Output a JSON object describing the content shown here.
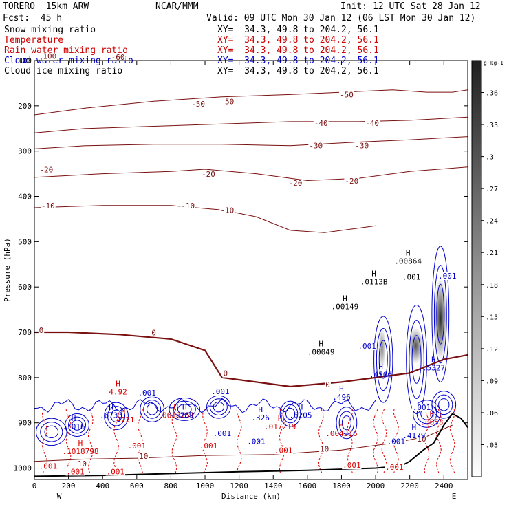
{
  "header": {
    "model": "TORERO  15km ARW",
    "org": "NCAR/MMM",
    "init": "Init: 12 UTC Sat 28 Jan 12",
    "fcst": "Fcst:  45 h",
    "valid": "Valid: 09 UTC Mon 30 Jan 12 (06 LST Mon 30 Jan 12)"
  },
  "fields": [
    {
      "label": "Snow mixing ratio",
      "xy": "XY=  34.3, 49.8 to 204.2, 56.1",
      "color": "#000000",
      "xy_color": "#000000"
    },
    {
      "label": "Temperature",
      "xy": "XY=  34.3, 49.8 to 204.2, 56.1",
      "color": "#cc0000",
      "xy_color": "#cc0000"
    },
    {
      "label": "Rain water mixing ratio",
      "xy": "XY=  34.3, 49.8 to 204.2, 56.1",
      "color": "#cc0000",
      "xy_color": "#cc0000"
    },
    {
      "label": "Cloud water mixing ratio",
      "xy": "XY=  34.3, 49.8 to 204.2, 56.1",
      "color": "#0000cc",
      "xy_color": "#0000cc"
    },
    {
      "label": "Cloud ice mixing ratio",
      "xy": "XY=  34.3, 49.8 to 204.2, 56.1",
      "color": "#000000",
      "xy_color": "#000000"
    }
  ],
  "colors": {
    "temperature": "#7a1010",
    "rain": "#dd0000",
    "cloud_water": "#0000cc",
    "terrain": "#000000",
    "snow_shade": "#222222"
  },
  "chart_data": {
    "type": "cross-section",
    "xlabel": "Distance (km)",
    "ylabel": "Pressure (hPa)",
    "xlim": [
      0,
      2540
    ],
    "ylim": [
      1025,
      100
    ],
    "x_ticks": [
      0,
      200,
      400,
      600,
      800,
      1000,
      1200,
      1400,
      1600,
      1800,
      2000,
      2200,
      2400
    ],
    "y_ticks": [
      200,
      300,
      400,
      500,
      600,
      700,
      800,
      900,
      1000
    ],
    "y_ticks_cropped": [
      100
    ],
    "left_end_label": "W",
    "right_end_label": "E",
    "colorbar": {
      "unit": "g kg-1",
      "ticks": [
        ".36",
        ".33",
        ".3",
        ".27",
        ".24",
        ".21",
        ".18",
        ".15",
        ".12",
        ".09",
        ".06",
        ".03"
      ]
    },
    "temperature_isotherms": [
      {
        "label": "-50",
        "points": [
          [
            0,
            220
          ],
          [
            300,
            205
          ],
          [
            700,
            190
          ],
          [
            1100,
            180
          ],
          [
            1500,
            175
          ],
          [
            1800,
            170
          ],
          [
            2100,
            165
          ],
          [
            2300,
            170
          ],
          [
            2450,
            170
          ],
          [
            2540,
            165
          ]
        ]
      },
      {
        "label": "-40",
        "points": [
          [
            0,
            260
          ],
          [
            300,
            250
          ],
          [
            700,
            245
          ],
          [
            1100,
            240
          ],
          [
            1500,
            235
          ],
          [
            1900,
            235
          ],
          [
            2200,
            232
          ],
          [
            2540,
            225
          ]
        ]
      },
      {
        "label": "-30",
        "points": [
          [
            0,
            295
          ],
          [
            300,
            288
          ],
          [
            700,
            285
          ],
          [
            1100,
            285
          ],
          [
            1500,
            288
          ],
          [
            1900,
            280
          ],
          [
            2200,
            275
          ],
          [
            2540,
            268
          ]
        ]
      },
      {
        "label": "-20",
        "points": [
          [
            0,
            358
          ],
          [
            400,
            350
          ],
          [
            800,
            345
          ],
          [
            1000,
            340
          ],
          [
            1300,
            350
          ],
          [
            1600,
            365
          ],
          [
            1900,
            360
          ],
          [
            2200,
            345
          ],
          [
            2540,
            335
          ]
        ]
      },
      {
        "label": "-10",
        "points": [
          [
            0,
            425
          ],
          [
            400,
            420
          ],
          [
            800,
            420
          ],
          [
            1100,
            430
          ],
          [
            1300,
            445
          ],
          [
            1500,
            475
          ],
          [
            1700,
            480
          ],
          [
            1900,
            470
          ],
          [
            2000,
            465
          ]
        ]
      },
      {
        "label": "0",
        "points": [
          [
            0,
            700
          ],
          [
            200,
            700
          ],
          [
            500,
            705
          ],
          [
            800,
            715
          ],
          [
            1000,
            740
          ],
          [
            1100,
            800
          ],
          [
            1300,
            810
          ],
          [
            1500,
            820
          ],
          [
            1800,
            810
          ],
          [
            2000,
            800
          ],
          [
            2200,
            790
          ],
          [
            2400,
            760
          ],
          [
            2540,
            750
          ]
        ]
      },
      {
        "label": "10",
        "points": [
          [
            0,
            985
          ],
          [
            300,
            980
          ],
          [
            600,
            978
          ],
          [
            1000,
            972
          ],
          [
            1400,
            970
          ],
          [
            1800,
            960
          ],
          [
            2100,
            945
          ],
          [
            2300,
            930
          ],
          [
            2450,
            905
          ]
        ]
      }
    ],
    "terrain_surface": [
      [
        0,
        1018
      ],
      [
        400,
        1016
      ],
      [
        800,
        1012
      ],
      [
        1200,
        1008
      ],
      [
        1600,
        1005
      ],
      [
        2000,
        1000
      ],
      [
        2150,
        995
      ],
      [
        2200,
        985
      ],
      [
        2280,
        960
      ],
      [
        2340,
        945
      ],
      [
        2400,
        905
      ],
      [
        2450,
        880
      ],
      [
        2500,
        890
      ],
      [
        2540,
        910
      ]
    ],
    "annotations": [
      {
        "text": "H",
        "sub": "4.92",
        "x": 490,
        "y": 828,
        "color": "red"
      },
      {
        "text": "H",
        "sub": ".6733",
        "x": 450,
        "y": 880,
        "color": "blue"
      },
      {
        "text": "H",
        "sub": ".7016",
        "x": 230,
        "y": 905,
        "color": "blue"
      },
      {
        "text": "H",
        "sub": ".4731",
        "x": 520,
        "y": 890,
        "color": "red"
      },
      {
        "text": "H",
        "sub": ".1018798",
        "x": 270,
        "y": 960,
        "color": "red"
      },
      {
        "text": "H",
        "sub": ".0618751",
        "x": 830,
        "y": 880,
        "color": "red"
      },
      {
        "text": "H",
        "sub": ".289",
        "x": 880,
        "y": 880,
        "color": "blue"
      },
      {
        "text": "H",
        "sub": ".326",
        "x": 1325,
        "y": 885,
        "color": "blue"
      },
      {
        "text": "H",
        "sub": ".017219",
        "x": 1440,
        "y": 905,
        "color": "red"
      },
      {
        "text": "H",
        "sub": ".6205",
        "x": 1560,
        "y": 880,
        "color": "blue"
      },
      {
        "text": "H",
        "sub": ".004316",
        "x": 1800,
        "y": 920,
        "color": "red"
      },
      {
        "text": "H",
        "sub": ".496",
        "x": 1800,
        "y": 840,
        "color": "blue"
      },
      {
        "text": "H",
        "sub": ".4506",
        "x": 2030,
        "y": 790,
        "color": "blue"
      },
      {
        "text": "H",
        "sub": ".00049",
        "x": 1680,
        "y": 740,
        "color": "black"
      },
      {
        "text": "H",
        "sub": ".00149",
        "x": 1820,
        "y": 640,
        "color": "black"
      },
      {
        "text": "H",
        "sub": ".0113B",
        "x": 1990,
        "y": 585,
        "color": "black"
      },
      {
        "text": "H",
        "sub": ".00864",
        "x": 2190,
        "y": 540,
        "color": "black"
      },
      {
        "text": "H",
        "sub": ".5327",
        "x": 2340,
        "y": 775,
        "color": "blue"
      },
      {
        "text": "H",
        "sub": ".4179",
        "x": 2225,
        "y": 925,
        "color": "blue"
      },
      {
        "text": "H",
        "sub": ".0653",
        "x": 2330,
        "y": 895,
        "color": "red"
      }
    ],
    "contour_labels": [
      {
        "text": "-50",
        "x": 1830,
        "y": 180,
        "color": "temp"
      },
      {
        "text": "-50",
        "x": 1130,
        "y": 195,
        "color": "temp"
      },
      {
        "text": "-50",
        "x": 960,
        "y": 200,
        "color": "temp"
      },
      {
        "text": "-40",
        "x": 1680,
        "y": 243,
        "color": "temp"
      },
      {
        "text": "-40",
        "x": 1980,
        "y": 243,
        "color": "temp"
      },
      {
        "text": "-30",
        "x": 1650,
        "y": 292,
        "color": "temp"
      },
      {
        "text": "-30",
        "x": 1920,
        "y": 292,
        "color": "temp"
      },
      {
        "text": "-20",
        "x": 70,
        "y": 345,
        "color": "temp"
      },
      {
        "text": "-20",
        "x": 1020,
        "y": 355,
        "color": "temp"
      },
      {
        "text": "-20",
        "x": 1530,
        "y": 375,
        "color": "temp"
      },
      {
        "text": "-20",
        "x": 1860,
        "y": 370,
        "color": "temp"
      },
      {
        "text": "-10",
        "x": 80,
        "y": 425,
        "color": "temp"
      },
      {
        "text": "-10",
        "x": 900,
        "y": 425,
        "color": "temp"
      },
      {
        "text": "-10",
        "x": 1130,
        "y": 435,
        "color": "temp"
      },
      {
        "text": "0",
        "x": 40,
        "y": 700,
        "color": "temp"
      },
      {
        "text": "0",
        "x": 700,
        "y": 705,
        "color": "temp"
      },
      {
        "text": "0",
        "x": 1120,
        "y": 795,
        "color": "temp"
      },
      {
        "text": "0",
        "x": 1720,
        "y": 820,
        "color": "temp"
      },
      {
        "text": "10",
        "x": 280,
        "y": 995,
        "color": "temp"
      },
      {
        "text": "10",
        "x": 640,
        "y": 978,
        "color": "temp"
      },
      {
        "text": "10",
        "x": 1700,
        "y": 962,
        "color": "temp"
      },
      {
        "text": "10",
        "x": 2270,
        "y": 940,
        "color": "temp"
      },
      {
        "text": "100",
        "x": 90,
        "y": 95,
        "color": "temp"
      },
      {
        "text": "-60",
        "x": 490,
        "y": 97,
        "color": "temp"
      },
      {
        "text": ".001",
        "x": 660,
        "y": 838,
        "color": "blue"
      },
      {
        "text": ".001",
        "x": 1090,
        "y": 835,
        "color": "blue"
      },
      {
        "text": ".001",
        "x": 1100,
        "y": 928,
        "color": "blue"
      },
      {
        "text": ".001",
        "x": 1300,
        "y": 945,
        "color": "blue"
      },
      {
        "text": ".001",
        "x": 1950,
        "y": 735,
        "color": "blue"
      },
      {
        "text": ".001",
        "x": 2420,
        "y": 580,
        "color": "blue"
      },
      {
        "text": ".001",
        "x": 2270,
        "y": 870,
        "color": "blue"
      },
      {
        "text": ".001",
        "x": 2120,
        "y": 945,
        "color": "blue"
      },
      {
        "text": ".001",
        "x": 2210,
        "y": 582,
        "color": "black"
      },
      {
        "text": ".001",
        "x": 80,
        "y": 1000,
        "color": "red"
      },
      {
        "text": ".001",
        "x": 240,
        "y": 1012,
        "color": "red"
      },
      {
        "text": ".001",
        "x": 475,
        "y": 1012,
        "color": "red"
      },
      {
        "text": ".001",
        "x": 600,
        "y": 955,
        "color": "red"
      },
      {
        "text": ".001",
        "x": 1020,
        "y": 955,
        "color": "red"
      },
      {
        "text": ".001",
        "x": 1460,
        "y": 965,
        "color": "red"
      },
      {
        "text": ".001",
        "x": 1860,
        "y": 998,
        "color": "red"
      },
      {
        "text": ".001",
        "x": 2110,
        "y": 1002,
        "color": "red"
      }
    ],
    "snow_columns": [
      {
        "x": [
          2015,
          2060
        ],
        "p": [
          690,
          780
        ],
        "max": 0.2
      },
      {
        "x": [
          2190,
          2280
        ],
        "p": [
          690,
          770
        ],
        "max": 0.28
      },
      {
        "x": [
          2340,
          2420
        ],
        "p": [
          580,
          760
        ],
        "max": 0.35
      }
    ]
  }
}
